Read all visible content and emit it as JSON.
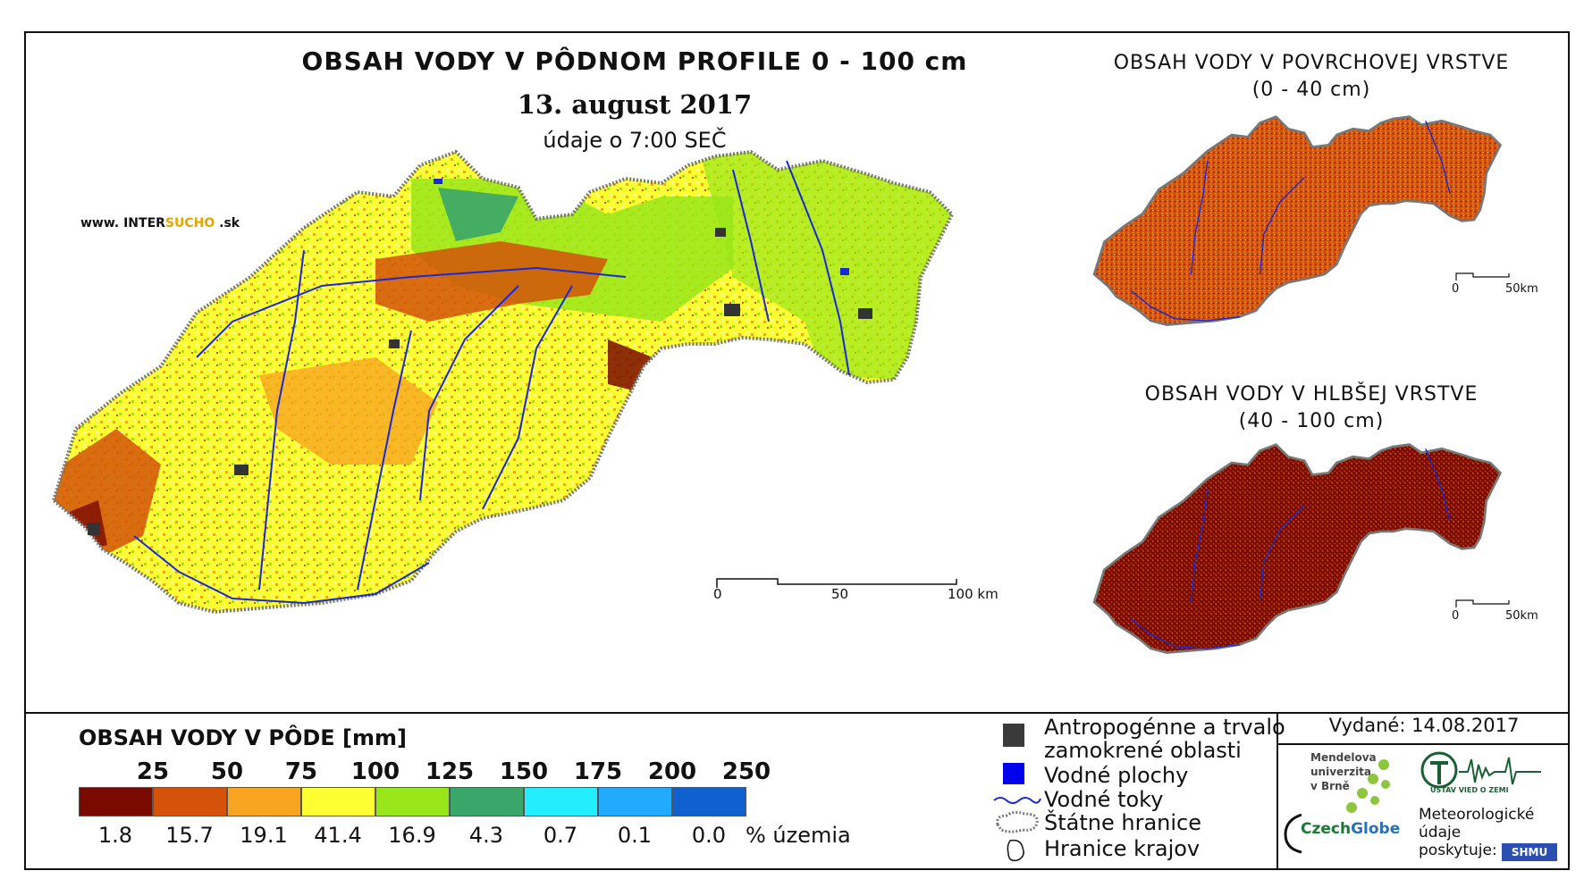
{
  "header": {
    "title": "OBSAH VODY V PÔDNOM PROFILE 0 - 100 cm",
    "date": "13. august 2017",
    "time": "údaje o 7:00 SEČ"
  },
  "website": {
    "prefix": "www. INTER",
    "mid": "SUCHO",
    "suffix": " .sk"
  },
  "insets": {
    "surface": {
      "title": "OBSAH VODY V POVRCHOVEJ VRSTVE",
      "subtitle": "(0 - 40 cm)",
      "scale_zero": "0",
      "scale_end": "50km"
    },
    "deep": {
      "title": "OBSAH VODY V HLBŠEJ VRSTVE",
      "subtitle": "(40 - 100 cm)",
      "scale_zero": "0",
      "scale_end": "50km"
    }
  },
  "scale_bar": {
    "zero": "0",
    "mid": "50",
    "end": "100 km"
  },
  "legend": {
    "title": "OBSAH VODY V PÔDE [mm]",
    "thresholds": [
      "25",
      "50",
      "75",
      "100",
      "125",
      "150",
      "175",
      "200",
      "250"
    ],
    "colors": [
      "#7a0a00",
      "#d4520a",
      "#f7a520",
      "#ffff33",
      "#99e61a",
      "#3aa66a",
      "#22eeff",
      "#22aaff",
      "#1060d0"
    ],
    "percentages": [
      "1.8",
      "15.7",
      "19.1",
      "41.4",
      "16.9",
      "4.3",
      "0.7",
      "0.1",
      "0.0"
    ],
    "percent_unit": "% územia"
  },
  "symbols": {
    "anthropogenic_line1": "Antropogénne a trvalo",
    "anthropogenic_line2": "zamokrené oblasti",
    "water_bodies": "Vodné plochy",
    "water_streams": "Vodné toky",
    "state_border": "Štátne hranice",
    "region_border": "Hranice krajov"
  },
  "issued": "Vydané: 14.08.2017",
  "credits": {
    "mendel_line1": "Mendelova",
    "mendel_line2": "univerzita",
    "mendel_line3": "v Brně",
    "czech": "Czech",
    "globe": "Globe",
    "ustav": "ÚSTAV VIED O ZEMI",
    "meteo_line1": "Meteorologické",
    "meteo_line2": "údaje",
    "meteo_line3": "poskytuje:",
    "shmu": "SHMU"
  }
}
